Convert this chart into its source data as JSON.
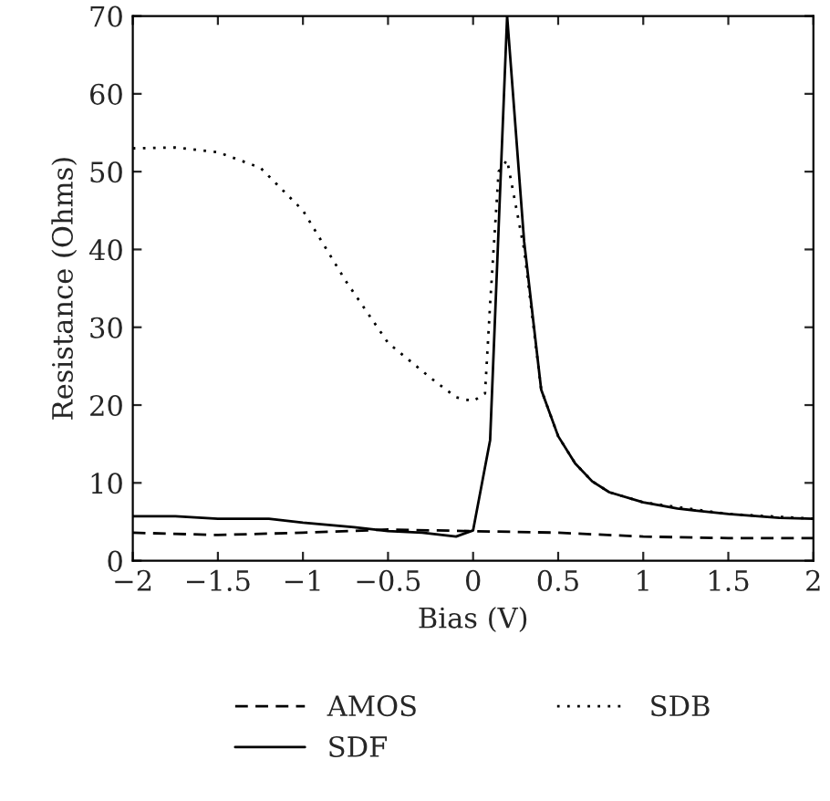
{
  "chart_data": {
    "type": "line",
    "xlabel": "Bias (V)",
    "ylabel": "Resistance (Ohms)",
    "xlim": [
      -2,
      2
    ],
    "xticks": [
      {
        "value": -2,
        "label": "−2"
      },
      {
        "value": -1.5,
        "label": "−1.5"
      },
      {
        "value": -1,
        "label": "−1"
      },
      {
        "value": -0.5,
        "label": "−0.5"
      },
      0,
      0.5,
      1,
      1.5,
      2
    ],
    "ylim": [
      0,
      70
    ],
    "yticks": [
      0,
      10,
      20,
      30,
      40,
      50,
      60,
      70
    ],
    "grid": false,
    "legend": "bottom",
    "series": [
      {
        "name": "AMOS",
        "color": "#000000",
        "line_style": "dashed",
        "x": [
          -2,
          -1.5,
          -1,
          -0.5,
          0,
          0.5,
          1,
          1.5,
          2
        ],
        "values": [
          3.6,
          3.3,
          3.6,
          4.0,
          3.8,
          3.6,
          3.1,
          2.9,
          2.9
        ]
      },
      {
        "name": "SDF",
        "color": "#000000",
        "line_style": "solid",
        "x": [
          -2,
          -1.75,
          -1.5,
          -1.2,
          -1,
          -0.7,
          -0.5,
          -0.3,
          -0.1,
          0,
          0.1,
          0.2,
          0.3,
          0.4,
          0.5,
          0.6,
          0.7,
          0.8,
          1.0,
          1.2,
          1.5,
          1.8,
          2
        ],
        "values": [
          5.7,
          5.7,
          5.4,
          5.4,
          4.9,
          4.3,
          3.8,
          3.6,
          3.1,
          3.9,
          15.5,
          70,
          41,
          22,
          16,
          12.5,
          10.2,
          8.8,
          7.5,
          6.7,
          6.0,
          5.5,
          5.4
        ]
      },
      {
        "name": "SDB",
        "color": "#000000",
        "line_style": "dotted",
        "x": [
          -2,
          -1.75,
          -1.5,
          -1.25,
          -1,
          -0.75,
          -0.5,
          -0.25,
          -0.1,
          0,
          0.07,
          0.1,
          0.15,
          0.2,
          0.3,
          0.4,
          0.5,
          0.6,
          0.7,
          0.8,
          1.0,
          1.5,
          2
        ],
        "values": [
          53,
          53.1,
          52.5,
          50.5,
          45,
          36,
          28,
          23.5,
          21,
          20.5,
          21.5,
          33,
          50,
          51.5,
          40,
          22,
          16,
          12.5,
          10.2,
          8.8,
          7.5,
          6.0,
          5.4
        ]
      }
    ]
  }
}
